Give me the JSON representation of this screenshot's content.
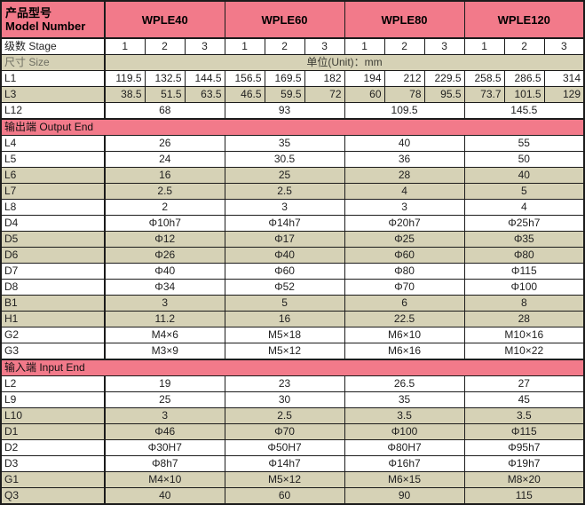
{
  "colors": {
    "header_pink": "#F27A8A",
    "row_beige": "#D6D2B6",
    "border": "#1B1B1B"
  },
  "title": {
    "zh": "产品型号",
    "en": "Model Number"
  },
  "models": [
    "WPLE40",
    "WPLE60",
    "WPLE80",
    "WPLE120"
  ],
  "stage_row": {
    "label": "级数 Stage",
    "stages": [
      "1",
      "2",
      "3"
    ]
  },
  "size_row": {
    "label": "尺寸 Size",
    "unit": "单位(Unit)：mm"
  },
  "top_rows": [
    {
      "label": "L1",
      "span": "stage",
      "shaded": false,
      "values": [
        "119.5",
        "132.5",
        "144.5",
        "156.5",
        "169.5",
        "182",
        "194",
        "212",
        "229.5",
        "258.5",
        "286.5",
        "314"
      ]
    },
    {
      "label": "L3",
      "span": "stage",
      "shaded": true,
      "values": [
        "38.5",
        "51.5",
        "63.5",
        "46.5",
        "59.5",
        "72",
        "60",
        "78",
        "95.5",
        "73.7",
        "101.5",
        "129"
      ]
    },
    {
      "label": "L12",
      "span": "model",
      "shaded": false,
      "values": [
        "68",
        "93",
        "109.5",
        "145.5"
      ]
    }
  ],
  "output_section": {
    "label": "输出端 Output End",
    "rows": [
      {
        "label": "L4",
        "span": "model",
        "shaded": false,
        "values": [
          "26",
          "35",
          "40",
          "55"
        ]
      },
      {
        "label": "L5",
        "span": "model",
        "shaded": false,
        "values": [
          "24",
          "30.5",
          "36",
          "50"
        ]
      },
      {
        "label": "L6",
        "span": "model",
        "shaded": true,
        "values": [
          "16",
          "25",
          "28",
          "40"
        ]
      },
      {
        "label": "L7",
        "span": "model",
        "shaded": true,
        "values": [
          "2.5",
          "2.5",
          "4",
          "5"
        ]
      },
      {
        "label": "L8",
        "span": "model",
        "shaded": false,
        "values": [
          "2",
          "3",
          "3",
          "4"
        ]
      },
      {
        "label": "D4",
        "span": "model",
        "shaded": false,
        "values": [
          "Φ10h7",
          "Φ14h7",
          "Φ20h7",
          "Φ25h7"
        ]
      },
      {
        "label": "D5",
        "span": "model",
        "shaded": true,
        "values": [
          "Φ12",
          "Φ17",
          "Φ25",
          "Φ35"
        ]
      },
      {
        "label": "D6",
        "span": "model",
        "shaded": true,
        "values": [
          "Φ26",
          "Φ40",
          "Φ60",
          "Φ80"
        ]
      },
      {
        "label": "D7",
        "span": "model",
        "shaded": false,
        "values": [
          "Φ40",
          "Φ60",
          "Φ80",
          "Φ115"
        ]
      },
      {
        "label": "D8",
        "span": "model",
        "shaded": false,
        "values": [
          "Φ34",
          "Φ52",
          "Φ70",
          "Φ100"
        ]
      },
      {
        "label": "B1",
        "span": "model",
        "shaded": true,
        "values": [
          "3",
          "5",
          "6",
          "8"
        ]
      },
      {
        "label": "H1",
        "span": "model",
        "shaded": true,
        "values": [
          "11.2",
          "16",
          "22.5",
          "28"
        ]
      },
      {
        "label": "G2",
        "span": "model",
        "shaded": false,
        "values": [
          "M4×6",
          "M5×18",
          "M6×10",
          "M10×16"
        ]
      },
      {
        "label": "G3",
        "span": "model",
        "shaded": false,
        "values": [
          "M3×9",
          "M5×12",
          "M6×16",
          "M10×22"
        ]
      }
    ]
  },
  "input_section": {
    "label": "输入端 Input End",
    "rows": [
      {
        "label": "L2",
        "span": "model",
        "shaded": false,
        "values": [
          "19",
          "23",
          "26.5",
          "27"
        ]
      },
      {
        "label": "L9",
        "span": "model",
        "shaded": false,
        "values": [
          "25",
          "30",
          "35",
          "45"
        ]
      },
      {
        "label": "L10",
        "span": "model",
        "shaded": true,
        "values": [
          "3",
          "2.5",
          "3.5",
          "3.5"
        ]
      },
      {
        "label": "D1",
        "span": "model",
        "shaded": true,
        "values": [
          "Φ46",
          "Φ70",
          "Φ100",
          "Φ115"
        ]
      },
      {
        "label": "D2",
        "span": "model",
        "shaded": false,
        "values": [
          "Φ30H7",
          "Φ50H7",
          "Φ80H7",
          "Φ95h7"
        ]
      },
      {
        "label": "D3",
        "span": "model",
        "shaded": false,
        "values": [
          "Φ8h7",
          "Φ14h7",
          "Φ16h7",
          "Φ19h7"
        ]
      },
      {
        "label": "G1",
        "span": "model",
        "shaded": true,
        "values": [
          "M4×10",
          "M5×12",
          "M6×15",
          "M8×20"
        ]
      },
      {
        "label": "Q3",
        "span": "model",
        "shaded": true,
        "values": [
          "40",
          "60",
          "90",
          "115"
        ]
      }
    ]
  }
}
